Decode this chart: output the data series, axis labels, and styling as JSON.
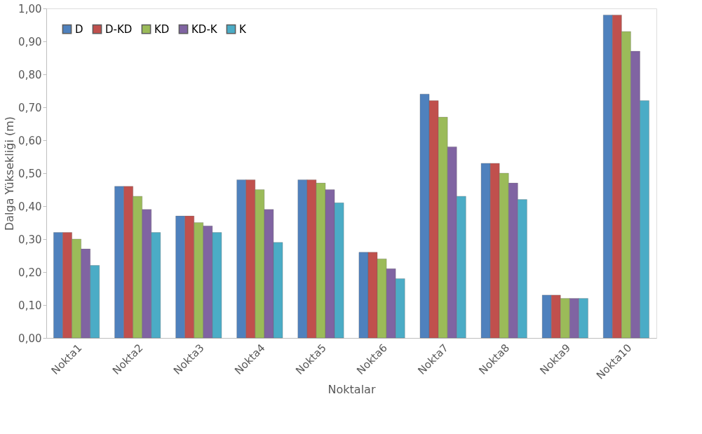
{
  "chart_data": {
    "type": "bar",
    "xlabel": "Noktalar",
    "ylabel": "Dalga Yüksekliği (m)",
    "categories": [
      "Nokta1",
      "Nokta2",
      "Nokta3",
      "Nokta4",
      "Nokta5",
      "Nokta6",
      "Nokta7",
      "Nokta8",
      "Nokta9",
      "Nokta10"
    ],
    "series": [
      {
        "name": "D",
        "color": "#4f81bd",
        "values": [
          0.32,
          0.46,
          0.37,
          0.48,
          0.48,
          0.26,
          0.74,
          0.53,
          0.13,
          0.98
        ]
      },
      {
        "name": "D-KD",
        "color": "#c0504d",
        "values": [
          0.32,
          0.46,
          0.37,
          0.48,
          0.48,
          0.26,
          0.72,
          0.53,
          0.13,
          0.98
        ]
      },
      {
        "name": "KD",
        "color": "#9bbb59",
        "values": [
          0.3,
          0.43,
          0.35,
          0.45,
          0.47,
          0.24,
          0.67,
          0.5,
          0.12,
          0.93
        ]
      },
      {
        "name": "KD-K",
        "color": "#8064a2",
        "values": [
          0.27,
          0.39,
          0.34,
          0.39,
          0.45,
          0.21,
          0.58,
          0.47,
          0.12,
          0.87
        ]
      },
      {
        "name": "K",
        "color": "#4bacc6",
        "values": [
          0.22,
          0.32,
          0.32,
          0.29,
          0.41,
          0.18,
          0.43,
          0.42,
          0.12,
          0.72
        ]
      }
    ],
    "ylim": [
      0,
      1
    ],
    "yticks": [
      {
        "value": 0,
        "label": "0,00"
      },
      {
        "value": 0.1,
        "label": "0,10"
      },
      {
        "value": 0.2,
        "label": "0,20"
      },
      {
        "value": 0.3,
        "label": "0,30"
      },
      {
        "value": 0.4,
        "label": "0,40"
      },
      {
        "value": 0.5,
        "label": "0,50"
      },
      {
        "value": 0.6,
        "label": "0,60"
      },
      {
        "value": 0.7,
        "label": "0,70"
      },
      {
        "value": 0.8,
        "label": "0,80"
      },
      {
        "value": 0.9,
        "label": "0,90"
      },
      {
        "value": 1,
        "label": "1,00"
      }
    ],
    "legend": "top left",
    "grid": false
  }
}
